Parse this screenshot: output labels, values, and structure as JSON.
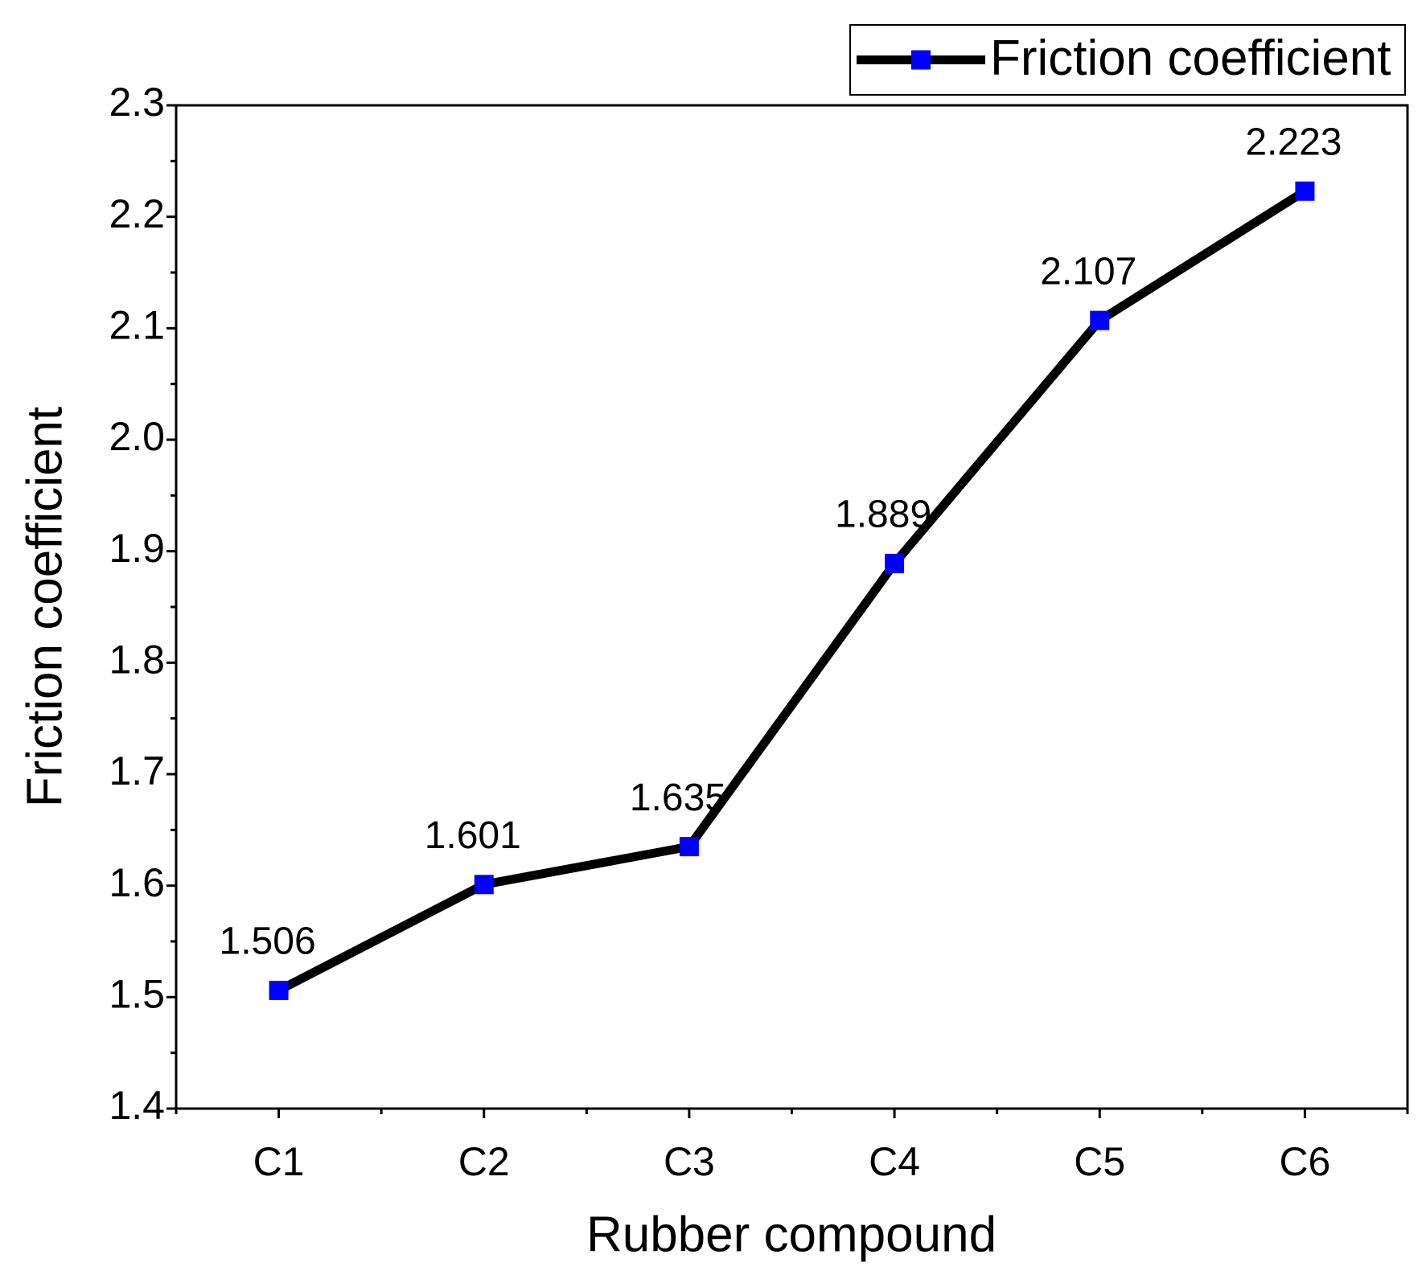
{
  "chart_data": {
    "type": "line",
    "x_label": "Rubber compound",
    "y_label": "Friction coefficient",
    "categories": [
      "C1",
      "C2",
      "C3",
      "C4",
      "C5",
      "C6"
    ],
    "series": [
      {
        "name": "Friction coefficient",
        "color": "#000000",
        "marker_color": "#0000ff",
        "marker": "square",
        "values": [
          1.506,
          1.601,
          1.635,
          1.889,
          2.107,
          2.223
        ]
      }
    ],
    "ylim": [
      1.4,
      2.3
    ],
    "yticks": [
      1.4,
      1.5,
      1.6,
      1.7,
      1.8,
      1.9,
      {
        "value": 2,
        "label": "2.0"
      },
      2.1,
      2.2,
      2.3
    ],
    "grid": false,
    "legend": "top-right",
    "data_labels": true
  }
}
